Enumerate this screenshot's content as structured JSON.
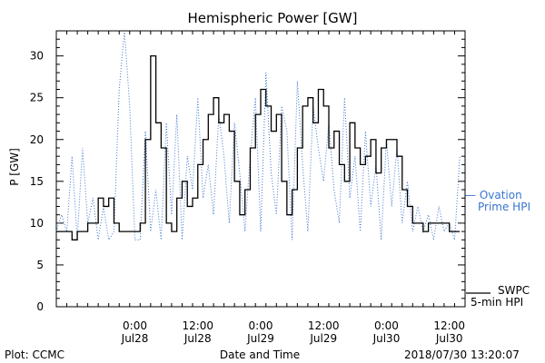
{
  "chart_data": {
    "type": "line",
    "title": "Hemispheric Power [GW]",
    "xlabel": "Date and Time",
    "ylabel": "P [GW]",
    "ylim": [
      0,
      33
    ],
    "yticks": [
      0,
      5,
      10,
      15,
      20,
      25,
      30
    ],
    "xlim": [
      "2018-07-27 09:00",
      "2018-07-30 15:00"
    ],
    "xticks": [
      {
        "x": "2018-07-28 00:00",
        "time": "0:00",
        "date": "Jul28"
      },
      {
        "x": "2018-07-28 12:00",
        "time": "12:00",
        "date": "Jul28"
      },
      {
        "x": "2018-07-29 00:00",
        "time": "0:00",
        "date": "Jul29"
      },
      {
        "x": "2018-07-29 12:00",
        "time": "12:00",
        "date": "Jul29"
      },
      {
        "x": "2018-07-30 00:00",
        "time": "0:00",
        "date": "Jul30"
      },
      {
        "x": "2018-07-30 12:00",
        "time": "12:00",
        "date": "Jul30"
      }
    ],
    "grid": false,
    "legend_position": "right",
    "series": [
      {
        "name": "Ovation Prime HPI",
        "legend_lines": [
          "— Ovation",
          "Prime HPI"
        ],
        "color": "#3a74d0",
        "style": "dotted",
        "x": [
          "2018-07-27 09:00",
          "2018-07-27 10:00",
          "2018-07-27 11:00",
          "2018-07-27 12:00",
          "2018-07-27 13:00",
          "2018-07-27 14:00",
          "2018-07-27 15:00",
          "2018-07-27 16:00",
          "2018-07-27 17:00",
          "2018-07-27 18:00",
          "2018-07-27 19:00",
          "2018-07-27 20:00",
          "2018-07-27 21:00",
          "2018-07-27 22:00",
          "2018-07-27 23:00",
          "2018-07-28 00:00",
          "2018-07-28 01:00",
          "2018-07-28 02:00",
          "2018-07-28 03:00",
          "2018-07-28 04:00",
          "2018-07-28 05:00",
          "2018-07-28 06:00",
          "2018-07-28 07:00",
          "2018-07-28 08:00",
          "2018-07-28 09:00",
          "2018-07-28 10:00",
          "2018-07-28 11:00",
          "2018-07-28 12:00",
          "2018-07-28 13:00",
          "2018-07-28 14:00",
          "2018-07-28 15:00",
          "2018-07-28 16:00",
          "2018-07-28 17:00",
          "2018-07-28 18:00",
          "2018-07-28 19:00",
          "2018-07-28 20:00",
          "2018-07-28 21:00",
          "2018-07-28 22:00",
          "2018-07-28 23:00",
          "2018-07-29 00:00",
          "2018-07-29 01:00",
          "2018-07-29 02:00",
          "2018-07-29 03:00",
          "2018-07-29 04:00",
          "2018-07-29 05:00",
          "2018-07-29 06:00",
          "2018-07-29 07:00",
          "2018-07-29 08:00",
          "2018-07-29 09:00",
          "2018-07-29 10:00",
          "2018-07-29 11:00",
          "2018-07-29 12:00",
          "2018-07-29 13:00",
          "2018-07-29 14:00",
          "2018-07-29 15:00",
          "2018-07-29 16:00",
          "2018-07-29 17:00",
          "2018-07-29 18:00",
          "2018-07-29 19:00",
          "2018-07-29 20:00",
          "2018-07-29 21:00",
          "2018-07-29 22:00",
          "2018-07-29 23:00",
          "2018-07-30 00:00",
          "2018-07-30 01:00",
          "2018-07-30 02:00",
          "2018-07-30 03:00",
          "2018-07-30 04:00",
          "2018-07-30 05:00",
          "2018-07-30 06:00",
          "2018-07-30 07:00",
          "2018-07-30 08:00",
          "2018-07-30 09:00",
          "2018-07-30 10:00",
          "2018-07-30 11:00",
          "2018-07-30 12:00",
          "2018-07-30 13:00",
          "2018-07-30 14:00"
        ],
        "values": [
          9,
          11,
          9,
          18,
          8,
          19,
          10,
          13,
          8,
          12,
          8,
          9,
          26,
          33,
          24,
          8,
          8,
          21,
          9,
          14,
          8,
          22,
          11,
          23,
          8,
          18,
          14,
          25,
          13,
          17,
          11,
          23,
          18,
          10,
          22,
          16,
          9,
          18,
          25,
          9,
          28,
          16,
          11,
          24,
          21,
          8,
          27,
          17,
          9,
          24,
          19,
          15,
          22,
          14,
          10,
          25,
          13,
          18,
          9,
          21,
          12,
          17,
          8,
          20,
          12,
          19,
          10,
          15,
          9,
          12,
          9,
          11,
          8,
          12,
          9,
          10,
          8,
          18
        ]
      },
      {
        "name": "SWPC 5-min HPI",
        "legend_lines": [
          "SWPC",
          "5-min HPI"
        ],
        "color": "#000000",
        "style": "solid",
        "x": [
          "2018-07-27 09:00",
          "2018-07-27 11:00",
          "2018-07-27 12:00",
          "2018-07-27 13:00",
          "2018-07-27 15:00",
          "2018-07-27 17:00",
          "2018-07-27 18:00",
          "2018-07-27 19:00",
          "2018-07-27 20:00",
          "2018-07-27 21:00",
          "2018-07-27 22:00",
          "2018-07-27 23:00",
          "2018-07-28 01:00",
          "2018-07-28 02:00",
          "2018-07-28 03:00",
          "2018-07-28 04:00",
          "2018-07-28 05:00",
          "2018-07-28 06:00",
          "2018-07-28 07:00",
          "2018-07-28 08:00",
          "2018-07-28 09:00",
          "2018-07-28 10:00",
          "2018-07-28 11:00",
          "2018-07-28 12:00",
          "2018-07-28 13:00",
          "2018-07-28 14:00",
          "2018-07-28 15:00",
          "2018-07-28 16:00",
          "2018-07-28 17:00",
          "2018-07-28 18:00",
          "2018-07-28 19:00",
          "2018-07-28 20:00",
          "2018-07-28 21:00",
          "2018-07-28 22:00",
          "2018-07-28 23:00",
          "2018-07-29 00:00",
          "2018-07-29 01:00",
          "2018-07-29 02:00",
          "2018-07-29 03:00",
          "2018-07-29 04:00",
          "2018-07-29 05:00",
          "2018-07-29 06:00",
          "2018-07-29 07:00",
          "2018-07-29 08:00",
          "2018-07-29 09:00",
          "2018-07-29 10:00",
          "2018-07-29 11:00",
          "2018-07-29 12:00",
          "2018-07-29 13:00",
          "2018-07-29 14:00",
          "2018-07-29 15:00",
          "2018-07-29 16:00",
          "2018-07-29 17:00",
          "2018-07-29 18:00",
          "2018-07-29 19:00",
          "2018-07-29 20:00",
          "2018-07-29 21:00",
          "2018-07-29 22:00",
          "2018-07-29 23:00",
          "2018-07-30 00:00",
          "2018-07-30 01:00",
          "2018-07-30 02:00",
          "2018-07-30 03:00",
          "2018-07-30 04:00",
          "2018-07-30 05:00",
          "2018-07-30 06:00",
          "2018-07-30 07:00",
          "2018-07-30 08:00",
          "2018-07-30 10:00",
          "2018-07-30 11:00",
          "2018-07-30 12:00",
          "2018-07-30 13:00",
          "2018-07-30 14:00"
        ],
        "values": [
          9,
          9,
          8,
          9,
          10,
          13,
          12,
          13,
          10,
          9,
          9,
          9,
          10,
          20,
          30,
          22,
          19,
          10,
          9,
          13,
          15,
          12,
          13,
          17,
          20,
          23,
          25,
          22,
          23,
          21,
          15,
          11,
          14,
          19,
          23,
          26,
          24,
          21,
          23,
          15,
          11,
          14,
          19,
          24,
          25,
          22,
          26,
          24,
          19,
          21,
          17,
          15,
          22,
          19,
          17,
          18,
          20,
          16,
          19,
          20,
          20,
          18,
          14,
          12,
          10,
          10,
          9,
          10,
          10,
          10,
          9,
          9,
          9
        ]
      }
    ]
  },
  "labels": {
    "plot_credit": "Plot: CCMC",
    "timestamp": "2018/07/30 13:20:07"
  }
}
